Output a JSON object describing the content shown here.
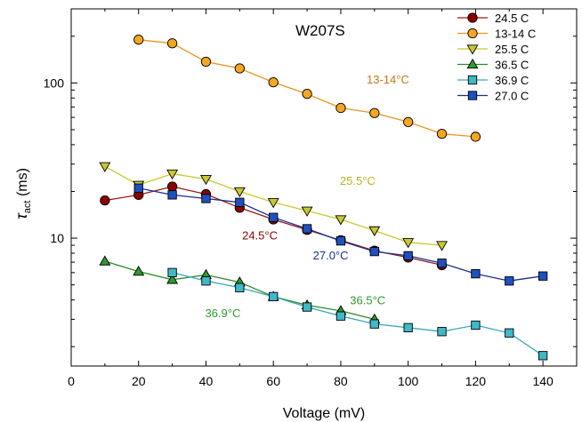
{
  "chart_data": {
    "type": "line",
    "title": "W207S",
    "xlabel": "Voltage (mV)",
    "ylabel_main": "τ",
    "ylabel_sub": "act",
    "ylabel_unit": "(ms)",
    "xlim": [
      0,
      150
    ],
    "ylim": [
      1.5,
      300
    ],
    "yscale": "log",
    "x_ticks": [
      0,
      20,
      40,
      60,
      80,
      100,
      120,
      140
    ],
    "x_tick_labels": [
      "0",
      "20",
      "40",
      "60",
      "80",
      "100",
      "120",
      "140"
    ],
    "y_ticks": [
      10,
      100
    ],
    "y_tick_labels": [
      "10",
      "100"
    ],
    "grid": false,
    "legend_position": "top-right",
    "series": [
      {
        "name": "24.5 C",
        "marker": "circle",
        "line_color": "#9b1b1b",
        "fill": "#8b0000",
        "x": [
          10,
          20,
          30,
          40,
          50,
          60,
          70,
          80,
          90,
          100,
          110
        ],
        "y": [
          17.5,
          19,
          21.5,
          19.2,
          15.7,
          13.2,
          11.3,
          9.7,
          8.3,
          7.5,
          6.7
        ]
      },
      {
        "name": "13-14 C",
        "marker": "circle",
        "line_color": "#e8961e",
        "fill": "#f5a623",
        "x": [
          20,
          30,
          40,
          50,
          60,
          70,
          80,
          90,
          100,
          110,
          120
        ],
        "y": [
          190,
          180,
          137,
          124,
          101,
          85,
          69,
          64,
          56,
          47,
          45
        ]
      },
      {
        "name": "25.5 C",
        "marker": "triangle-down",
        "line_color": "#c8c832",
        "fill": "#c8c832",
        "x": [
          10,
          20,
          30,
          40,
          50,
          60,
          70,
          80,
          90,
          100,
          110
        ],
        "y": [
          29,
          22,
          26,
          24,
          20,
          17,
          15,
          13.2,
          11.2,
          9.4,
          9
        ]
      },
      {
        "name": "36.5 C",
        "marker": "triangle-up",
        "line_color": "#2e8b2e",
        "fill": "#2e9a2e",
        "x": [
          10,
          20,
          30,
          40,
          50,
          60,
          70,
          80,
          90
        ],
        "y": [
          7.1,
          6.1,
          5.4,
          5.8,
          5.2,
          4.2,
          3.7,
          3.4,
          3.0
        ]
      },
      {
        "name": "36.9 C",
        "marker": "square",
        "line_color": "#3aa8b8",
        "fill": "#40b8c8",
        "x": [
          30,
          40,
          50,
          60,
          70,
          80,
          90,
          100,
          110,
          120,
          130,
          140
        ],
        "y": [
          6.0,
          5.3,
          4.8,
          4.2,
          3.6,
          3.15,
          2.8,
          2.65,
          2.5,
          2.75,
          2.45,
          1.75
        ]
      },
      {
        "name": "27.0 C",
        "marker": "square",
        "line_color": "#1a2f8f",
        "fill": "#2050c0",
        "x": [
          20,
          30,
          40,
          50,
          60,
          70,
          80,
          90,
          100,
          110,
          120,
          130,
          140
        ],
        "y": [
          21,
          19,
          18,
          17,
          13.6,
          11.5,
          9.6,
          8.2,
          7.7,
          6.9,
          5.9,
          5.3,
          5.7
        ]
      }
    ],
    "annotations": [
      {
        "text": "13-14°C",
        "x": 94,
        "y": 99,
        "color": "#c87814"
      },
      {
        "text": "25.5°C",
        "x": 85,
        "y": 22,
        "color": "#b4b41e"
      },
      {
        "text": "24.5°C",
        "x": 56,
        "y": 9.8,
        "color": "#8b0000"
      },
      {
        "text": "27.0°C",
        "x": 77,
        "y": 7.3,
        "color": "#1a2f8f"
      },
      {
        "text": "36.5°C",
        "x": 88,
        "y": 3.75,
        "color": "#2e9a2e"
      },
      {
        "text": "36.9°C",
        "x": 45,
        "y": 3.1,
        "color": "#2e9a2e"
      }
    ]
  }
}
